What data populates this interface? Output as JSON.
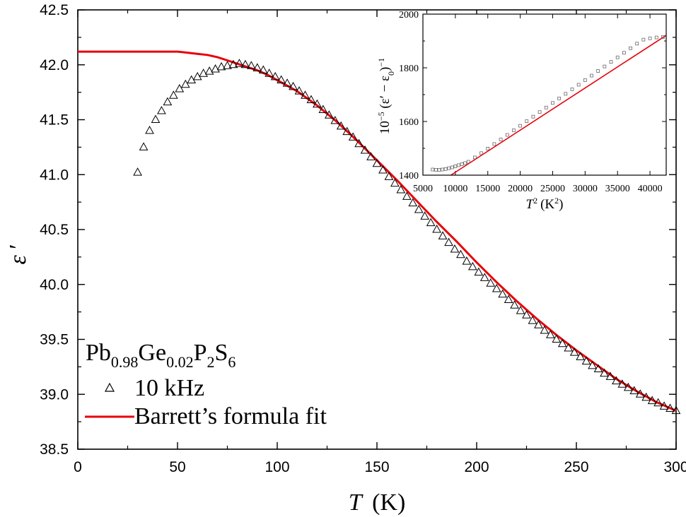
{
  "chart_data": [
    {
      "type": "scatter",
      "title": "",
      "xlabel": {
        "symbol": "T",
        "unit": "(K)"
      },
      "ylabel": {
        "symbol": "ε",
        "prime": "′"
      },
      "xlim": [
        0,
        300
      ],
      "ylim": [
        38.5,
        42.5
      ],
      "xticks": [
        0,
        50,
        100,
        150,
        200,
        250,
        300
      ],
      "xtick_labels": [
        "0",
        "50",
        "100",
        "150",
        "200",
        "250",
        "300"
      ],
      "yticks": [
        38.5,
        39.0,
        39.5,
        40.0,
        40.5,
        41.0,
        41.5,
        42.0,
        42.5
      ],
      "ytick_labels": [
        "38.5",
        "39.0",
        "39.5",
        "40.0",
        "40.5",
        "41.0",
        "41.5",
        "42.0",
        "42.5"
      ],
      "grid": false,
      "legend_position": "bottom-left",
      "sample_label": {
        "parts": [
          {
            "text": "Pb",
            "sub": false
          },
          {
            "text": "0.98",
            "sub": true
          },
          {
            "text": "Ge",
            "sub": false
          },
          {
            "text": "0.02",
            "sub": true
          },
          {
            "text": "P",
            "sub": false
          },
          {
            "text": "2",
            "sub": true
          },
          {
            "text": "S",
            "sub": false
          },
          {
            "text": "6",
            "sub": true
          }
        ]
      },
      "series": [
        {
          "name": "10 kHz",
          "marker": "open-triangle",
          "color": "#000000",
          "x": [
            30,
            33,
            36,
            39,
            42,
            45,
            48,
            51,
            54,
            57,
            60,
            63,
            66,
            69,
            72,
            75,
            78,
            81,
            84,
            87,
            90,
            93,
            96,
            99,
            102,
            105,
            108,
            111,
            114,
            117,
            120,
            123,
            126,
            129,
            132,
            135,
            138,
            141,
            144,
            147,
            150,
            153,
            156,
            159,
            162,
            165,
            168,
            171,
            174,
            177,
            180,
            183,
            186,
            189,
            192,
            195,
            198,
            201,
            204,
            207,
            210,
            213,
            216,
            219,
            222,
            225,
            228,
            231,
            234,
            237,
            240,
            243,
            246,
            249,
            252,
            255,
            258,
            261,
            264,
            267,
            270,
            273,
            276,
            279,
            282,
            285,
            288,
            291,
            294,
            297,
            300
          ],
          "y": [
            41.02,
            41.25,
            41.4,
            41.5,
            41.58,
            41.66,
            41.72,
            41.78,
            41.82,
            41.86,
            41.89,
            41.92,
            41.94,
            41.96,
            41.98,
            41.99,
            42.0,
            42.01,
            42.0,
            41.99,
            41.97,
            41.95,
            41.92,
            41.89,
            41.86,
            41.83,
            41.8,
            41.76,
            41.72,
            41.68,
            41.64,
            41.59,
            41.54,
            41.49,
            41.44,
            41.39,
            41.34,
            41.28,
            41.22,
            41.16,
            41.1,
            41.04,
            40.98,
            40.92,
            40.86,
            40.8,
            40.74,
            40.68,
            40.62,
            40.56,
            40.5,
            40.44,
            40.38,
            40.32,
            40.27,
            40.21,
            40.16,
            40.11,
            40.06,
            40.01,
            39.96,
            39.91,
            39.86,
            39.81,
            39.76,
            39.72,
            39.67,
            39.63,
            39.58,
            39.54,
            39.5,
            39.46,
            39.42,
            39.38,
            39.34,
            39.3,
            39.26,
            39.23,
            39.19,
            39.16,
            39.12,
            39.09,
            39.06,
            39.03,
            39.0,
            38.97,
            38.94,
            38.92,
            38.89,
            38.87,
            38.85
          ]
        },
        {
          "name": "Barrett’s formula fit",
          "marker": "line",
          "color": "#e8000b",
          "x": [
            0,
            10,
            20,
            30,
            40,
            50,
            55,
            60,
            65,
            70,
            75,
            80,
            85,
            90,
            95,
            100,
            110,
            120,
            130,
            140,
            150,
            160,
            170,
            180,
            190,
            200,
            210,
            220,
            230,
            240,
            250,
            260,
            270,
            280,
            290,
            300
          ],
          "y": [
            42.12,
            42.12,
            42.12,
            42.12,
            42.12,
            42.12,
            42.11,
            42.1,
            42.09,
            42.07,
            42.04,
            42.01,
            41.98,
            41.95,
            41.91,
            41.86,
            41.76,
            41.63,
            41.48,
            41.31,
            41.13,
            40.95,
            40.76,
            40.57,
            40.39,
            40.2,
            40.02,
            39.85,
            39.69,
            39.54,
            39.4,
            39.27,
            39.14,
            39.03,
            38.93,
            38.85
          ]
        }
      ]
    },
    {
      "type": "scatter",
      "title": "",
      "xlabel": {
        "symbol": "T",
        "sup": "2",
        "unit": "(K",
        "unit_sup": "2",
        "unit_close": ")"
      },
      "ylabel": {
        "text": "10",
        "sup": "−5",
        "expr": " (ε′ − ε",
        "sub": "0",
        "close": ")",
        "sup2": "−1"
      },
      "xlim": [
        5000,
        42500
      ],
      "ylim": [
        1400,
        2000
      ],
      "xticks": [
        5000,
        10000,
        15000,
        20000,
        25000,
        30000,
        35000,
        40000
      ],
      "xtick_labels": [
        "5000",
        "10000",
        "15000",
        "20000",
        "25000",
        "30000",
        "35000",
        "40000"
      ],
      "yticks": [
        1400,
        1600,
        1800,
        2000
      ],
      "ytick_labels": [
        "1400",
        "1600",
        "1800",
        "2000"
      ],
      "grid": false,
      "legend_position": "none",
      "series": [
        {
          "name": "",
          "marker": "open-square",
          "color": "#000000",
          "x": [
            6500,
            7000,
            7500,
            8000,
            8500,
            9000,
            9500,
            10000,
            10500,
            11000,
            11500,
            12000,
            13000,
            14000,
            15000,
            16000,
            17000,
            18000,
            19000,
            20000,
            21000,
            22000,
            23000,
            24000,
            25000,
            26000,
            27000,
            28000,
            29000,
            30000,
            31000,
            32000,
            33000,
            34000,
            35000,
            36000,
            37000,
            38000,
            39000,
            40000,
            41000,
            42000
          ],
          "y": [
            1421,
            1420,
            1420,
            1421,
            1423,
            1426,
            1429,
            1433,
            1437,
            1441,
            1445,
            1450,
            1466,
            1482,
            1499,
            1516,
            1533,
            1550,
            1567,
            1584,
            1601,
            1618,
            1635,
            1652,
            1669,
            1686,
            1703,
            1720,
            1737,
            1754,
            1771,
            1788,
            1805,
            1822,
            1839,
            1856,
            1873,
            1890,
            1905,
            1910,
            1913,
            1915
          ]
        },
        {
          "name": "",
          "marker": "line",
          "color": "#e8000b",
          "x": [
            8800,
            42500
          ],
          "y": [
            1392,
            1921
          ]
        }
      ]
    }
  ]
}
